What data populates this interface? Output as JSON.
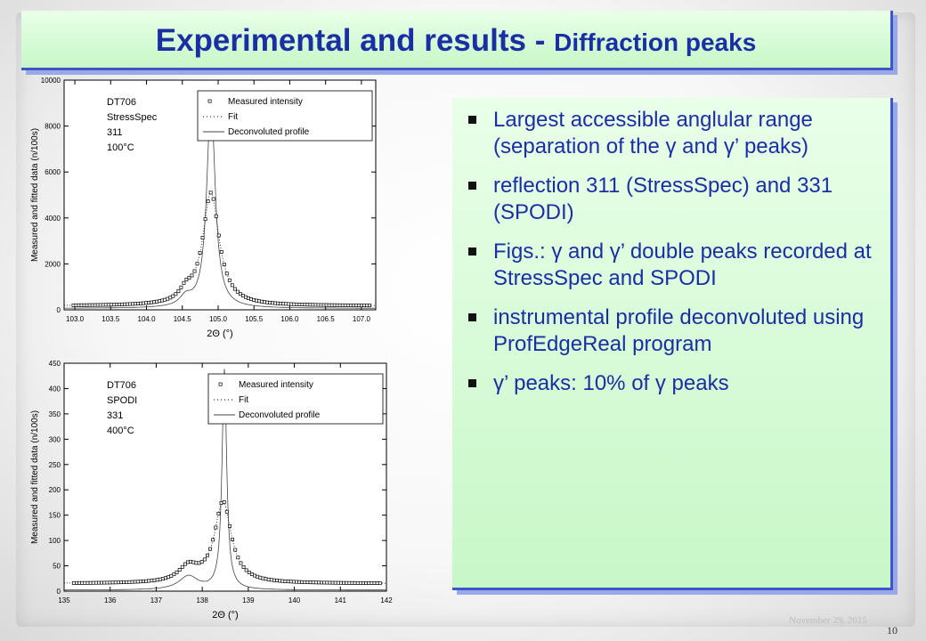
{
  "title": {
    "main": "Experimental and results - ",
    "sub": "Diffraction peaks"
  },
  "bullets": [
    "Largest accessible anglular range (separation of the γ and γ’ peaks)",
    "reflection 311 (StressSpec) and 331 (SPODI)",
    "Figs.: γ and γ’ double peaks recorded at StressSpec and SPODI",
    "instrumental profile deconvoluted  using ProfEdgeReal program",
    "γ’ peaks: 10% of γ peaks"
  ],
  "chart_data": [
    {
      "type": "scatter",
      "ylabel": "Measured and fitted data  (n/100s)",
      "xlabel": "2Θ (°)",
      "xlim": [
        102.85,
        107.2
      ],
      "ylim": [
        0,
        10000
      ],
      "xticks": [
        "103.0",
        "103.5",
        "104.0",
        "104.5",
        "105.0",
        "105.5",
        "106.0",
        "106.5",
        "107.0"
      ],
      "xtick_values": [
        103.0,
        103.5,
        104.0,
        104.5,
        105.0,
        105.5,
        106.0,
        106.5,
        107.0
      ],
      "yticks": [
        "0",
        "2000",
        "4000",
        "6000",
        "8000",
        "10000"
      ],
      "ytick_values": [
        0,
        2000,
        4000,
        6000,
        8000,
        10000
      ],
      "annotation": [
        "DT706",
        "StressSpec",
        "311",
        "100°C"
      ],
      "legend": [
        "Measured intensity",
        "Fit",
        "Deconvoluted profile"
      ],
      "legend_position": "top-right",
      "gamma_peak": {
        "center": 104.9,
        "height": 4900,
        "hwhm": 0.14,
        "base": 170
      },
      "gamma_prime_peak": {
        "center": 104.55,
        "height": 450,
        "hwhm": 0.1
      },
      "deconv_peak": {
        "center": 104.9,
        "height": 9100,
        "hwhm": 0.07,
        "base": 60
      }
    },
    {
      "type": "scatter",
      "ylabel": "Measured and fitted data  (n/100s)",
      "xlabel": "2Θ (°)",
      "xlim": [
        135,
        142
      ],
      "ylim": [
        0,
        450
      ],
      "xticks": [
        "135",
        "136",
        "137",
        "138",
        "139",
        "140",
        "141",
        "142"
      ],
      "xtick_values": [
        135,
        136,
        137,
        138,
        139,
        140,
        141,
        142
      ],
      "yticks": [
        "0",
        "50",
        "100",
        "150",
        "200",
        "250",
        "300",
        "350",
        "400",
        "450"
      ],
      "ytick_values": [
        0,
        50,
        100,
        150,
        200,
        250,
        300,
        350,
        400,
        450
      ],
      "annotation": [
        "DT706",
        "SPODI",
        "331",
        "400°C"
      ],
      "legend": [
        "Measured intensity",
        "Fit",
        "Deconvoluted profile"
      ],
      "legend_position": "top-right",
      "gamma_peak": {
        "center": 138.45,
        "height": 160,
        "hwhm": 0.22,
        "base": 15
      },
      "gamma_prime_peak": {
        "center": 137.7,
        "height": 30,
        "hwhm": 0.25
      },
      "deconv_peak": {
        "center": 138.48,
        "height": 435,
        "hwhm": 0.06,
        "base": 2
      }
    }
  ],
  "footer": {
    "date": "November 29, 2015",
    "page": "10"
  },
  "colors": {
    "title": "#1a2fa3",
    "box_fill": "#d6fbd6",
    "box_border": "#3d56c9"
  }
}
